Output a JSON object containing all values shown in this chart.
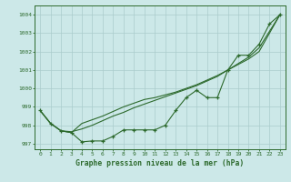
{
  "x": [
    0,
    1,
    2,
    3,
    4,
    5,
    6,
    7,
    8,
    9,
    10,
    11,
    12,
    13,
    14,
    15,
    16,
    17,
    18,
    19,
    20,
    21,
    22,
    23
  ],
  "series_main": [
    998.8,
    998.1,
    997.7,
    997.6,
    997.1,
    997.15,
    997.15,
    997.4,
    997.75,
    997.75,
    997.75,
    997.75,
    998.0,
    998.8,
    999.5,
    999.9,
    999.5,
    999.5,
    1001.0,
    1001.8,
    1001.8,
    1002.4,
    1003.5,
    1004.0
  ],
  "line_smooth1": [
    998.8,
    998.1,
    997.7,
    997.6,
    998.1,
    998.3,
    998.5,
    998.75,
    999.0,
    999.2,
    999.4,
    999.5,
    999.65,
    999.8,
    1000.0,
    1000.2,
    1000.45,
    1000.7,
    1001.0,
    1001.3,
    1001.6,
    1002.0,
    1003.0,
    1004.0
  ],
  "line_smooth2": [
    998.8,
    998.1,
    997.7,
    997.65,
    997.8,
    998.0,
    998.25,
    998.5,
    998.7,
    998.95,
    999.15,
    999.35,
    999.55,
    999.75,
    999.95,
    1000.15,
    1000.4,
    1000.65,
    1001.0,
    1001.35,
    1001.7,
    1002.2,
    1003.1,
    1004.0
  ],
  "bg_color": "#cce8e8",
  "grid_color_major": "#aacccc",
  "line_color": "#2d6a2d",
  "xlabel": "Graphe pression niveau de la mer (hPa)",
  "ylim": [
    996.7,
    1004.5
  ],
  "yticks": [
    997,
    998,
    999,
    1000,
    1001,
    1002,
    1003,
    1004
  ],
  "xticks": [
    0,
    1,
    2,
    3,
    4,
    5,
    6,
    7,
    8,
    9,
    10,
    11,
    12,
    13,
    14,
    15,
    16,
    17,
    18,
    19,
    20,
    21,
    22,
    23
  ]
}
